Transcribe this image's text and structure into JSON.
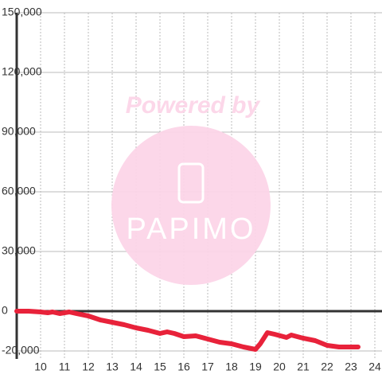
{
  "chart_data": {
    "type": "line",
    "watermark": {
      "caption": "Powered by",
      "brand": "PAPIMO"
    },
    "x": [
      9,
      9.5,
      10,
      10.3,
      10.5,
      10.8,
      11.2,
      11.5,
      12,
      12.5,
      13,
      13.5,
      14,
      14.5,
      15,
      15.3,
      15.6,
      16,
      16.5,
      17,
      17.5,
      18,
      18.5,
      19,
      19.2,
      19.5,
      19.8,
      20.3,
      20.5,
      21,
      21.5,
      22,
      22.5,
      23.3
    ],
    "series": [
      {
        "color": "#e8223a",
        "values": [
          0,
          0,
          -400,
          -800,
          -400,
          -1200,
          -400,
          -1200,
          -2400,
          -4400,
          -5600,
          -6800,
          -8400,
          -9600,
          -11200,
          -10400,
          -11200,
          -12800,
          -12400,
          -14000,
          -15600,
          -16400,
          -18000,
          -19200,
          -16400,
          -10800,
          -11600,
          -13200,
          -12000,
          -13600,
          -14800,
          -17200,
          -18000,
          -18000
        ]
      }
    ],
    "xlim": [
      9,
      24.3
    ],
    "xticks": [
      10,
      11,
      12,
      13,
      14,
      15,
      16,
      17,
      18,
      19,
      20,
      21,
      22,
      23,
      24
    ],
    "ylim": [
      -24000,
      150000
    ],
    "yticks": [
      {
        "value": -20000,
        "label": "-20,000"
      },
      0,
      {
        "value": 30000,
        "label": "30,000"
      },
      {
        "value": 60000,
        "label": "60,000"
      },
      {
        "value": 90000,
        "label": "90,000"
      },
      {
        "value": 120000,
        "label": "120,000"
      },
      {
        "value": 150000,
        "label": "150,000"
      }
    ],
    "grid": true
  }
}
